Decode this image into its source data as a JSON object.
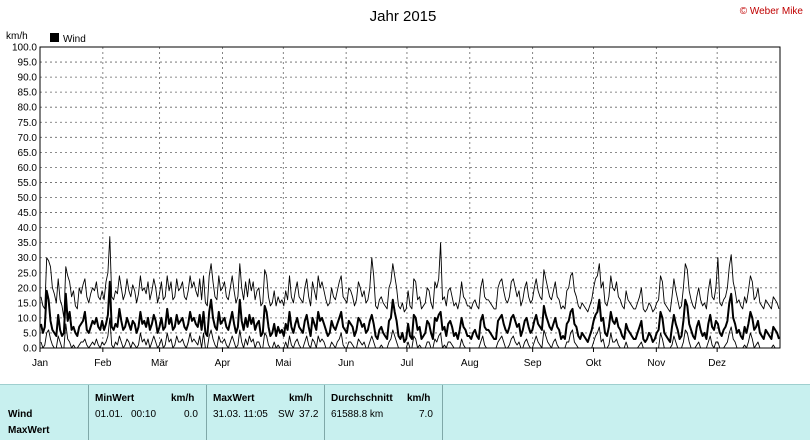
{
  "credit": "© Weber Mike",
  "chart_data": {
    "type": "line",
    "title": "Jahr 2015",
    "ylabel": "km/h",
    "ylim": [
      0,
      100
    ],
    "yticks": [
      "0.0",
      "5.0",
      "10.0",
      "15.0",
      "20.0",
      "25.0",
      "30.0",
      "35.0",
      "40.0",
      "45.0",
      "50.0",
      "55.0",
      "60.0",
      "65.0",
      "70.0",
      "75.0",
      "80.0",
      "85.0",
      "90.0",
      "95.0",
      "100.0"
    ],
    "months": [
      "Jan",
      "Feb",
      "Mär",
      "Apr",
      "Mai",
      "Jun",
      "Jul",
      "Aug",
      "Sep",
      "Okt",
      "Nov",
      "Dez"
    ],
    "grid": true,
    "legend": "top-left",
    "series": [
      {
        "name": "Wind",
        "color": "#000000",
        "values": [
          8,
          5,
          7,
          19,
          16,
          9,
          6,
          5,
          4,
          11,
          6,
          4,
          5,
          18,
          9,
          12,
          6,
          7,
          5,
          4,
          7,
          8,
          9,
          12,
          6,
          5,
          7,
          9,
          8,
          10,
          7,
          6,
          9,
          6,
          8,
          11,
          22,
          7,
          6,
          8,
          7,
          13,
          9,
          6,
          7,
          10,
          8,
          6,
          9,
          8,
          5,
          7,
          12,
          8,
          9,
          7,
          10,
          6,
          8,
          11,
          9,
          5,
          7,
          10,
          6,
          7,
          13,
          8,
          10,
          6,
          7,
          11,
          8,
          9,
          10,
          7,
          6,
          8,
          12,
          9,
          10,
          8,
          7,
          11,
          6,
          12,
          5,
          4,
          12,
          16,
          10,
          7,
          6,
          12,
          8,
          9,
          10,
          7,
          6,
          9,
          12,
          8,
          5,
          7,
          16,
          9,
          6,
          10,
          7,
          11,
          8,
          10,
          6,
          8,
          9,
          4,
          5,
          14,
          12,
          7,
          4,
          5,
          8,
          4,
          7,
          5,
          6,
          4,
          8,
          6,
          12,
          7,
          5,
          8,
          10,
          7,
          6,
          5,
          9,
          11,
          7,
          4,
          10,
          8,
          6,
          12,
          9,
          10,
          8,
          6,
          4,
          5,
          9,
          7,
          6,
          8,
          10,
          12,
          7,
          6,
          5,
          9,
          8,
          7,
          4,
          6,
          10,
          9,
          7,
          8,
          5,
          6,
          9,
          11,
          8,
          4,
          3,
          6,
          7,
          5,
          4,
          3,
          9,
          10,
          16,
          12,
          9,
          4,
          3,
          5,
          2,
          3,
          8,
          4,
          3,
          11,
          10,
          6,
          7,
          3,
          4,
          5,
          9,
          8,
          5,
          3,
          10,
          9,
          11,
          12,
          6,
          7,
          4,
          8,
          9,
          7,
          4,
          5,
          3,
          6,
          10,
          7,
          6,
          4,
          4,
          3,
          5,
          6,
          4,
          3,
          9,
          11,
          7,
          6,
          6,
          5,
          4,
          3,
          3,
          9,
          10,
          11,
          8,
          6,
          5,
          7,
          10,
          11,
          9,
          7,
          8,
          4,
          6,
          9,
          10,
          7,
          5,
          6,
          9,
          11,
          8,
          7,
          6,
          14,
          11,
          9,
          7,
          6,
          8,
          10,
          7,
          6,
          3,
          4,
          3,
          8,
          9,
          12,
          13,
          8,
          7,
          4,
          3,
          5,
          4,
          3,
          2,
          4,
          6,
          9,
          11,
          12,
          16,
          9,
          10,
          5,
          4,
          7,
          12,
          9,
          8,
          10,
          7,
          6,
          4,
          3,
          8,
          6,
          5,
          4,
          3,
          3,
          5,
          7,
          9,
          3,
          2,
          3,
          5,
          4,
          2,
          3,
          5,
          6,
          12,
          10,
          5,
          4,
          3,
          2,
          7,
          11,
          8,
          6,
          3,
          4,
          9,
          16,
          14,
          8,
          6,
          4,
          3,
          7,
          9,
          6,
          4,
          5,
          3,
          8,
          11,
          7,
          6,
          9,
          8,
          5,
          4,
          6,
          7,
          9,
          15,
          18,
          10,
          8,
          5,
          6,
          4,
          3,
          7,
          5,
          8,
          12,
          10,
          6,
          7,
          9,
          5,
          4,
          3,
          6,
          5,
          4,
          3,
          7,
          6,
          5,
          3
        ]
      },
      {
        "name": "MaxWert",
        "color": "#000000",
        "values": [
          17,
          14,
          13,
          30,
          29,
          27,
          20,
          18,
          15,
          23,
          16,
          14,
          10,
          27,
          24,
          22,
          17,
          19,
          14,
          13,
          20,
          18,
          21,
          23,
          17,
          15,
          18,
          20,
          19,
          22,
          17,
          16,
          19,
          16,
          22,
          25,
          37,
          17,
          16,
          19,
          18,
          24,
          20,
          16,
          18,
          23,
          19,
          17,
          21,
          19,
          15,
          18,
          24,
          19,
          20,
          18,
          22,
          16,
          19,
          23,
          20,
          15,
          18,
          22,
          16,
          17,
          24,
          19,
          22,
          16,
          17,
          23,
          19,
          20,
          22,
          17,
          16,
          19,
          24,
          20,
          22,
          19,
          17,
          23,
          16,
          24,
          15,
          14,
          24,
          28,
          22,
          17,
          16,
          24,
          19,
          20,
          22,
          17,
          16,
          20,
          24,
          19,
          15,
          17,
          28,
          20,
          16,
          22,
          17,
          23,
          19,
          22,
          16,
          19,
          20,
          14,
          15,
          26,
          24,
          17,
          14,
          15,
          19,
          14,
          17,
          15,
          16,
          14,
          19,
          16,
          24,
          17,
          15,
          19,
          22,
          17,
          16,
          15,
          20,
          23,
          17,
          14,
          22,
          19,
          16,
          24,
          20,
          22,
          19,
          16,
          14,
          15,
          20,
          17,
          16,
          19,
          22,
          24,
          17,
          16,
          15,
          20,
          19,
          17,
          14,
          16,
          22,
          20,
          17,
          19,
          15,
          16,
          20,
          30,
          24,
          14,
          13,
          16,
          17,
          15,
          14,
          13,
          20,
          22,
          28,
          24,
          20,
          14,
          13,
          15,
          12,
          13,
          19,
          14,
          13,
          23,
          22,
          16,
          17,
          13,
          14,
          15,
          20,
          19,
          15,
          13,
          22,
          20,
          23,
          35,
          16,
          17,
          14,
          19,
          20,
          17,
          14,
          15,
          13,
          16,
          22,
          17,
          16,
          14,
          14,
          13,
          15,
          16,
          14,
          13,
          20,
          23,
          17,
          16,
          16,
          15,
          14,
          13,
          13,
          20,
          22,
          23,
          19,
          16,
          15,
          17,
          22,
          23,
          20,
          17,
          19,
          14,
          16,
          20,
          22,
          17,
          15,
          16,
          20,
          23,
          19,
          17,
          16,
          26,
          23,
          20,
          17,
          16,
          19,
          22,
          17,
          16,
          13,
          14,
          13,
          19,
          20,
          24,
          25,
          19,
          17,
          14,
          13,
          15,
          14,
          13,
          12,
          14,
          16,
          20,
          23,
          24,
          28,
          20,
          22,
          15,
          14,
          17,
          24,
          20,
          19,
          22,
          17,
          16,
          14,
          13,
          19,
          16,
          15,
          14,
          13,
          13,
          15,
          17,
          20,
          13,
          12,
          13,
          15,
          14,
          12,
          13,
          15,
          16,
          24,
          22,
          15,
          14,
          13,
          12,
          17,
          23,
          19,
          16,
          13,
          14,
          20,
          28,
          26,
          19,
          16,
          14,
          13,
          17,
          20,
          16,
          14,
          15,
          13,
          19,
          23,
          17,
          16,
          20,
          30,
          15,
          14,
          16,
          17,
          20,
          27,
          31,
          22,
          19,
          15,
          16,
          14,
          13,
          17,
          15,
          19,
          24,
          22,
          16,
          17,
          20,
          15,
          14,
          13,
          16,
          15,
          14,
          13,
          17,
          16,
          15,
          13
        ]
      },
      {
        "name": "MinWert",
        "color": "#000000",
        "values": [
          2,
          0,
          1,
          5,
          6,
          3,
          1,
          0,
          0,
          4,
          2,
          0,
          0,
          8,
          3,
          2,
          0,
          1,
          0,
          0,
          1,
          2,
          2,
          3,
          1,
          0,
          1,
          2,
          1,
          3,
          1,
          0,
          2,
          1,
          2,
          4,
          10,
          1,
          0,
          2,
          1,
          4,
          2,
          0,
          1,
          3,
          2,
          0,
          2,
          1,
          0,
          1,
          5,
          2,
          3,
          1,
          3,
          0,
          2,
          4,
          2,
          0,
          1,
          3,
          0,
          1,
          5,
          2,
          3,
          0,
          1,
          4,
          2,
          2,
          3,
          1,
          0,
          2,
          5,
          2,
          3,
          2,
          1,
          4,
          0,
          5,
          0,
          0,
          4,
          6,
          3,
          1,
          0,
          4,
          2,
          2,
          3,
          1,
          0,
          2,
          4,
          2,
          0,
          1,
          6,
          2,
          0,
          3,
          1,
          4,
          2,
          3,
          0,
          2,
          2,
          0,
          0,
          5,
          4,
          1,
          0,
          0,
          2,
          0,
          1,
          0,
          0,
          0,
          2,
          0,
          4,
          1,
          0,
          2,
          3,
          1,
          0,
          0,
          2,
          4,
          1,
          0,
          3,
          2,
          0,
          4,
          2,
          3,
          2,
          0,
          0,
          0,
          2,
          1,
          0,
          2,
          3,
          5,
          1,
          0,
          0,
          2,
          2,
          1,
          0,
          0,
          3,
          2,
          1,
          2,
          0,
          0,
          2,
          4,
          2,
          0,
          0,
          0,
          1,
          0,
          0,
          0,
          2,
          3,
          6,
          4,
          2,
          0,
          0,
          0,
          0,
          0,
          2,
          0,
          0,
          4,
          3,
          0,
          1,
          0,
          0,
          0,
          2,
          2,
          0,
          0,
          3,
          2,
          4,
          5,
          0,
          1,
          0,
          2,
          2,
          1,
          0,
          0,
          0,
          0,
          3,
          1,
          0,
          0,
          0,
          0,
          0,
          0,
          0,
          0,
          2,
          4,
          1,
          0,
          0,
          0,
          0,
          0,
          0,
          2,
          3,
          4,
          2,
          0,
          0,
          1,
          3,
          4,
          2,
          1,
          2,
          0,
          0,
          2,
          3,
          1,
          0,
          0,
          2,
          4,
          2,
          1,
          0,
          6,
          4,
          2,
          1,
          0,
          2,
          3,
          1,
          0,
          0,
          0,
          0,
          2,
          2,
          5,
          6,
          2,
          1,
          0,
          0,
          0,
          0,
          0,
          0,
          0,
          0,
          2,
          4,
          5,
          7,
          2,
          3,
          0,
          0,
          1,
          5,
          2,
          2,
          3,
          1,
          0,
          0,
          0,
          2,
          0,
          0,
          0,
          0,
          0,
          0,
          1,
          2,
          0,
          0,
          0,
          0,
          0,
          0,
          0,
          0,
          0,
          5,
          3,
          0,
          0,
          0,
          0,
          1,
          4,
          2,
          0,
          0,
          0,
          2,
          6,
          5,
          2,
          0,
          0,
          0,
          1,
          2,
          0,
          0,
          0,
          0,
          2,
          4,
          1,
          0,
          2,
          2,
          0,
          0,
          0,
          1,
          2,
          5,
          7,
          3,
          2,
          0,
          0,
          0,
          0,
          1,
          0,
          2,
          5,
          3,
          0,
          1,
          2,
          0,
          0,
          0,
          0,
          0,
          0,
          0,
          1,
          0,
          0,
          0
        ]
      }
    ]
  },
  "stats": {
    "row1_label": "Wind",
    "row2_label": "MaxWert",
    "min_header": "MinWert",
    "min_unit": "km/h",
    "min_date": "01.01.",
    "min_time": "00:10",
    "min_value": "0.0",
    "max_header": "MaxWert",
    "max_unit": "km/h",
    "max_datetime": "31.03. 11:05",
    "max_dir": "SW",
    "max_value": "37.2",
    "avg_header": "Durchschnitt",
    "avg_unit": "km/h",
    "avg_distance": "61588.8 km",
    "avg_value": "7.0"
  }
}
